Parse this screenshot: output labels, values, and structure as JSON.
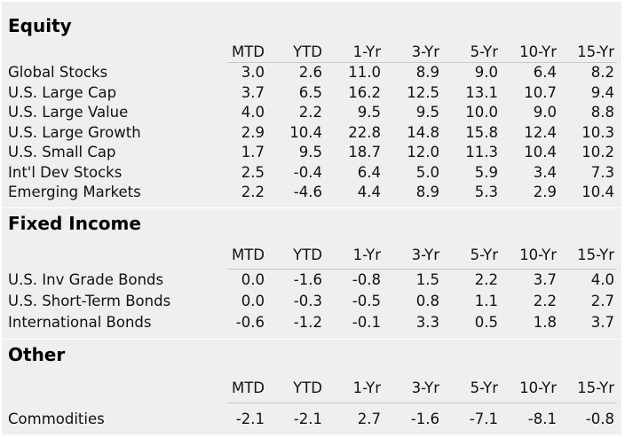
{
  "columns": [
    "MTD",
    "YTD",
    "1-Yr",
    "3-Yr",
    "5-Yr",
    "10-Yr",
    "15-Yr"
  ],
  "sections": [
    {
      "title": "Equity",
      "rows": [
        {
          "label": "Global Stocks",
          "values": [
            "3.0",
            "2.6",
            "11.0",
            "8.9",
            "9.0",
            "6.4",
            "8.2"
          ]
        },
        {
          "label": "U.S. Large Cap",
          "values": [
            "3.7",
            "6.5",
            "16.2",
            "12.5",
            "13.1",
            "10.7",
            "9.4"
          ]
        },
        {
          "label": "U.S. Large Value",
          "values": [
            "4.0",
            "2.2",
            "9.5",
            "9.5",
            "10.0",
            "9.0",
            "8.8"
          ]
        },
        {
          "label": "U.S. Large Growth",
          "values": [
            "2.9",
            "10.4",
            "22.8",
            "14.8",
            "15.8",
            "12.4",
            "10.3"
          ]
        },
        {
          "label": "U.S. Small Cap",
          "values": [
            "1.7",
            "9.5",
            "18.7",
            "12.0",
            "11.3",
            "10.4",
            "10.2"
          ]
        },
        {
          "label": "Int'l Dev Stocks",
          "values": [
            "2.5",
            "-0.4",
            "6.4",
            "5.0",
            "5.9",
            "3.4",
            "7.3"
          ]
        },
        {
          "label": "Emerging Markets",
          "values": [
            "2.2",
            "-4.6",
            "4.4",
            "8.9",
            "5.3",
            "2.9",
            "10.4"
          ]
        }
      ]
    },
    {
      "title": "Fixed Income",
      "rows": [
        {
          "label": "U.S. Inv Grade Bonds",
          "values": [
            "0.0",
            "-1.6",
            "-0.8",
            "1.5",
            "2.2",
            "3.7",
            "4.0"
          ]
        },
        {
          "label": "U.S. Short-Term Bonds",
          "values": [
            "0.0",
            "-0.3",
            "-0.5",
            "0.8",
            "1.1",
            "2.2",
            "2.7"
          ]
        },
        {
          "label": "International Bonds",
          "values": [
            "-0.6",
            "-1.2",
            "-0.1",
            "3.3",
            "0.5",
            "1.8",
            "3.7"
          ]
        }
      ]
    },
    {
      "title": "Other",
      "rows": [
        {
          "label": "Commodities",
          "values": [
            "-2.1",
            "-2.1",
            "2.7",
            "-1.6",
            "-7.1",
            "-8.1",
            "-0.8"
          ]
        }
      ]
    }
  ]
}
